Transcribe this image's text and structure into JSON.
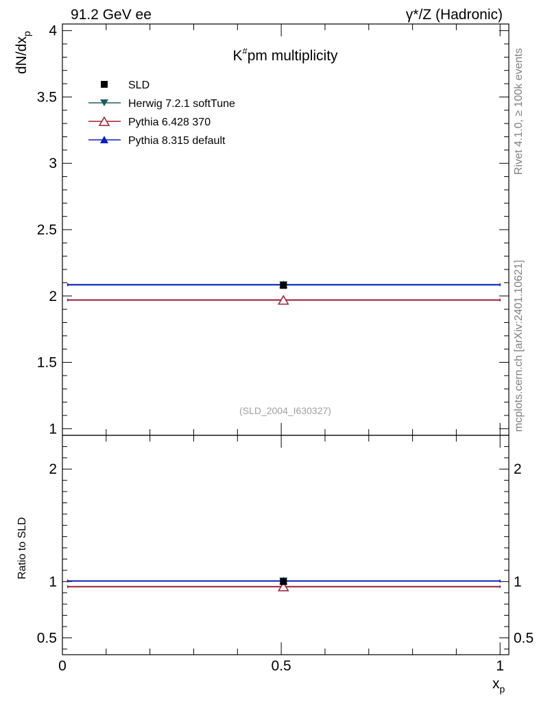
{
  "header": {
    "left_label": "91.2 GeV ee",
    "right_label": "γ*/Z (Hadronic)"
  },
  "side_labels": {
    "rivet": "Rivet 4.1.0, ≥ 100k events",
    "mcplots": "mcplots.cern.ch [arXiv:2401.10621]"
  },
  "chart_data": {
    "type": "scatter",
    "title_base": "K",
    "title_sup": "#",
    "title_rest": "pm  multiplicity",
    "analysis_id": "(SLD_2004_I630327)",
    "xlabel_base": "x",
    "xlabel_sub": "p",
    "ylabel_base": "dN/dx",
    "ylabel_sub": "p",
    "ratio_ylabel": "Ratio to SLD",
    "xlim": [
      0,
      1.02
    ],
    "ylim": [
      0.95,
      4.05
    ],
    "ratio_ylim": [
      0.35,
      2.3
    ],
    "x_ticks": [
      {
        "value": 0,
        "label": "0"
      },
      {
        "value": 0.5,
        "label": "0.5"
      },
      {
        "value": 1,
        "label": "1"
      }
    ],
    "y_ticks": [
      {
        "value": 1,
        "label": "1"
      },
      {
        "value": 1.5,
        "label": "1.5"
      },
      {
        "value": 2,
        "label": "2"
      },
      {
        "value": 2.5,
        "label": "2.5"
      },
      {
        "value": 3,
        "label": "3"
      },
      {
        "value": 3.5,
        "label": "3.5"
      },
      {
        "value": 4,
        "label": "4"
      }
    ],
    "ratio_ticks": [
      {
        "value": 0.5,
        "label": "0.5"
      },
      {
        "value": 1,
        "label": "1"
      },
      {
        "value": 2,
        "label": "2"
      }
    ],
    "series": [
      {
        "name": "SLD",
        "color": "#000000",
        "marker": "square",
        "x": 0.505,
        "y": 2.08,
        "yerr": 0.01,
        "xlo": null,
        "xhi": null,
        "ratio": 1.0
      },
      {
        "name": "Herwig 7.2.1 softTune",
        "color": "#1b5e5e",
        "marker": "triangle-down",
        "x": 0.505,
        "y": 2.085,
        "xlo": 0.012,
        "xhi": 1.0,
        "ratio": 1.005
      },
      {
        "name": "Pythia 6.428 370",
        "color": "#9b1b30",
        "marker": "triangle-up-open",
        "x": 0.505,
        "y": 1.97,
        "xlo": 0.012,
        "xhi": 1.0,
        "ratio": 0.955
      },
      {
        "name": "Pythia 8.315 default",
        "color": "#0a1fbf",
        "marker": "triangle-up",
        "x": 0.505,
        "y": 2.085,
        "xlo": 0.012,
        "xhi": 1.0,
        "ratio": 1.005
      }
    ]
  }
}
